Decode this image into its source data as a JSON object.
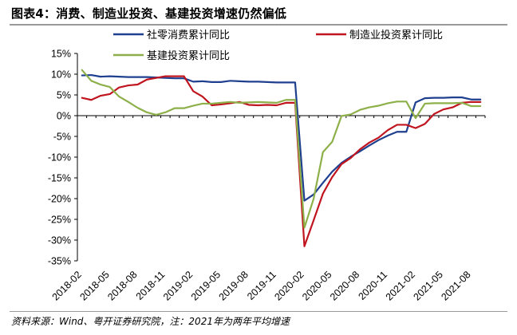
{
  "title": "图表4：消费、制造业投资、基建投资增速仍然偏低",
  "source": "资料来源：Wind、粤开证券研究院，注：2021年为两年平均增速",
  "chart_data": {
    "type": "line",
    "ylim": [
      -35,
      15
    ],
    "yticks": [
      15,
      10,
      5,
      0,
      -5,
      -10,
      -15,
      -20,
      -25,
      -30,
      -35
    ],
    "ytick_labels": [
      "15%",
      "10%",
      "5%",
      "0%",
      "-5%",
      "-10%",
      "-15%",
      "-20%",
      "-25%",
      "-30%",
      "-35%"
    ],
    "xtick_labels": [
      "2018-02",
      "2018-05",
      "2018-08",
      "2018-11",
      "2019-02",
      "2019-05",
      "2019-08",
      "2019-11",
      "2020-02",
      "2020-05",
      "2020-08",
      "2020-11",
      "2021-02",
      "2021-05",
      "2021-08"
    ],
    "x_months": [
      "2018-02",
      "2018-03",
      "2018-04",
      "2018-05",
      "2018-06",
      "2018-07",
      "2018-08",
      "2018-09",
      "2018-10",
      "2018-11",
      "2018-12",
      "2019-01",
      "2019-02",
      "2019-03",
      "2019-04",
      "2019-05",
      "2019-06",
      "2019-07",
      "2019-08",
      "2019-09",
      "2019-10",
      "2019-11",
      "2019-12",
      "2020-01",
      "2020-02",
      "2020-03",
      "2020-04",
      "2020-05",
      "2020-06",
      "2020-07",
      "2020-08",
      "2020-09",
      "2020-10",
      "2020-11",
      "2020-12",
      "2021-01",
      "2021-02",
      "2021-03",
      "2021-04",
      "2021-05",
      "2021-06",
      "2021-07",
      "2021-08",
      "2021-09"
    ],
    "legend_placement": "top",
    "grid": false,
    "series": [
      {
        "name": "社零消费累计同比",
        "color": "#1f3f8f",
        "values": [
          9.7,
          9.8,
          9.4,
          9.5,
          9.4,
          9.3,
          9.3,
          9.3,
          9.2,
          9.1,
          9.0,
          9.0,
          8.2,
          8.3,
          8.1,
          8.1,
          8.4,
          8.3,
          8.2,
          8.2,
          8.1,
          8.0,
          8.0,
          8.0,
          -20.5,
          -19.0,
          -16.2,
          -13.5,
          -11.4,
          -9.9,
          -8.6,
          -7.2,
          -5.9,
          -4.8,
          -3.9,
          -3.9,
          3.2,
          4.2,
          4.3,
          4.3,
          4.4,
          4.4,
          3.9,
          3.9
        ]
      },
      {
        "name": "制造业投资累计同比",
        "color": "#c0151f",
        "values": [
          4.3,
          3.8,
          4.8,
          5.2,
          6.8,
          7.3,
          7.5,
          8.7,
          9.1,
          9.5,
          9.5,
          9.5,
          5.9,
          4.6,
          2.5,
          2.7,
          3.0,
          3.3,
          2.6,
          2.5,
          2.6,
          2.5,
          3.1,
          3.1,
          -31.5,
          -25.2,
          -18.8,
          -14.8,
          -11.7,
          -10.2,
          -8.1,
          -6.5,
          -5.3,
          -3.5,
          -2.2,
          -2.2,
          -3.0,
          -2.0,
          0.4,
          1.5,
          2.0,
          3.1,
          3.3,
          3.3
        ]
      },
      {
        "name": "基建投资累计同比",
        "color": "#8db04a",
        "values": [
          11.0,
          8.4,
          7.5,
          6.9,
          4.6,
          3.3,
          1.9,
          0.8,
          0.2,
          0.8,
          1.8,
          1.8,
          2.4,
          2.9,
          2.9,
          3.1,
          3.3,
          3.1,
          3.2,
          3.3,
          3.2,
          3.1,
          3.8,
          3.8,
          -27.0,
          -20.0,
          -8.8,
          -6.3,
          -0.1,
          0.3,
          1.4,
          2.0,
          2.4,
          3.0,
          3.4,
          3.4,
          -0.6,
          2.9,
          3.0,
          3.0,
          3.0,
          3.1,
          2.3,
          2.3
        ]
      }
    ]
  }
}
